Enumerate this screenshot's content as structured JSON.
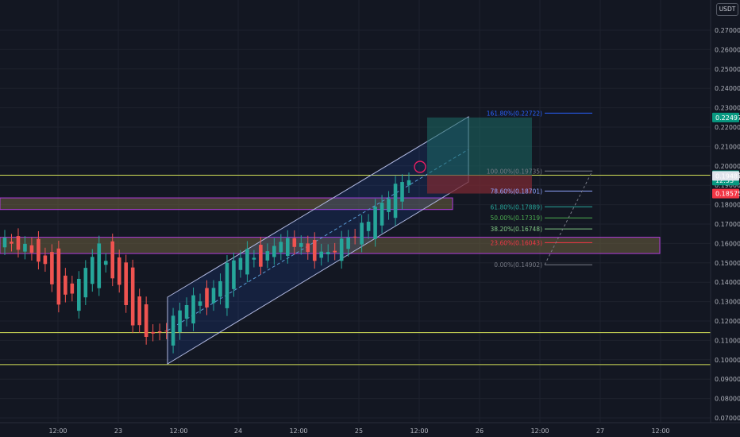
{
  "price_axis": {
    "currency": "USDT",
    "ticks": [
      "0.27000",
      "0.26000",
      "0.25000",
      "0.24000",
      "0.23000",
      "0.22000",
      "0.21000",
      "0.20000",
      "0.19000",
      "0.18000",
      "0.17000",
      "0.16000",
      "0.15000",
      "0.14000",
      "0.13000",
      "0.12000",
      "0.11000",
      "0.10000",
      "0.09000",
      "0.08000",
      "0.07000"
    ]
  },
  "time_axis": {
    "ticks": [
      "12:00",
      "23",
      "12:00",
      "24",
      "12:00",
      "25",
      "12:00",
      "26",
      "12:00",
      "27",
      "12:00"
    ]
  },
  "badges": [
    {
      "label": "0.22497",
      "value": 0.22497,
      "color": "#089981"
    },
    {
      "label": "0.19523",
      "value": 0.19523,
      "color": "#089981"
    },
    {
      "label": "12:53",
      "value": 0.19245,
      "color": "#089981"
    },
    {
      "label": "0.19487",
      "value": 0.19487,
      "color": "#e0e3eb"
    },
    {
      "label": "0.18575",
      "value": 0.18575,
      "color": "#f23645"
    }
  ],
  "fib_levels": [
    {
      "label": "161.80%(0.22722)",
      "value": 0.22722,
      "color": "#2962ff"
    },
    {
      "label": "100.00%(0.19735)",
      "value": 0.19735,
      "color": "#787b86"
    },
    {
      "label": "78.60%(0.18701)",
      "value": 0.18701,
      "color": "#90a4ff"
    },
    {
      "label": "61.80%(0.17889)",
      "value": 0.17889,
      "color": "#26a69a"
    },
    {
      "label": "50.00%(0.17319)",
      "value": 0.17319,
      "color": "#4caf50"
    },
    {
      "label": "38.20%(0.16748)",
      "value": 0.16748,
      "color": "#81c784"
    },
    {
      "label": "23.60%(0.16043)",
      "value": 0.16043,
      "color": "#f23645"
    },
    {
      "label": "0.00%(0.14902)",
      "value": 0.14902,
      "color": "#787b86"
    }
  ],
  "colors": {
    "background": "#131722",
    "grid": "#1e222d",
    "up": "#26a69a",
    "down": "#ef5350",
    "horizontal_lines": "#d4e157",
    "channel": "#b0b8e0",
    "zone": "#6d6040",
    "zone_border": "#b03adb",
    "target": "#1b6b66",
    "stop": "#7a2a33"
  },
  "chart_data": {
    "type": "candlestick",
    "title": "",
    "ylim": [
      0.065,
      0.28
    ],
    "x_ticks": [
      "12:00",
      "23",
      "12:00",
      "24",
      "12:00",
      "25",
      "12:00",
      "26",
      "12:00",
      "27",
      "12:00"
    ],
    "horizontal_levels": [
      0.19523,
      0.114,
      0.0975
    ],
    "zones": [
      [
        0.1775,
        0.1835
      ],
      [
        0.1548,
        0.1632
      ]
    ],
    "position": {
      "entry": 0.19523,
      "target": 0.22497,
      "stop": 0.18575
    },
    "candles_ohlc_sample": [
      [
        0.163,
        0.166,
        0.157,
        0.16
      ],
      [
        0.16,
        0.164,
        0.155,
        0.158
      ],
      [
        0.158,
        0.163,
        0.15,
        0.152
      ],
      [
        0.152,
        0.156,
        0.128,
        0.13
      ],
      [
        0.13,
        0.14,
        0.126,
        0.138
      ],
      [
        0.138,
        0.164,
        0.136,
        0.16
      ],
      [
        0.16,
        0.162,
        0.14,
        0.142
      ],
      [
        0.142,
        0.146,
        0.118,
        0.12
      ],
      [
        0.12,
        0.123,
        0.105,
        0.11
      ],
      [
        0.11,
        0.124,
        0.102,
        0.118
      ],
      [
        0.118,
        0.135,
        0.116,
        0.132
      ],
      [
        0.132,
        0.144,
        0.126,
        0.13
      ],
      [
        0.13,
        0.148,
        0.128,
        0.146
      ],
      [
        0.146,
        0.158,
        0.14,
        0.156
      ],
      [
        0.156,
        0.165,
        0.148,
        0.15
      ],
      [
        0.15,
        0.168,
        0.148,
        0.164
      ],
      [
        0.164,
        0.17,
        0.155,
        0.158
      ],
      [
        0.158,
        0.162,
        0.15,
        0.152
      ],
      [
        0.152,
        0.162,
        0.148,
        0.158
      ],
      [
        0.158,
        0.17,
        0.156,
        0.166
      ],
      [
        0.166,
        0.178,
        0.164,
        0.174
      ],
      [
        0.174,
        0.188,
        0.17,
        0.186
      ],
      [
        0.186,
        0.198,
        0.18,
        0.195
      ]
    ]
  }
}
